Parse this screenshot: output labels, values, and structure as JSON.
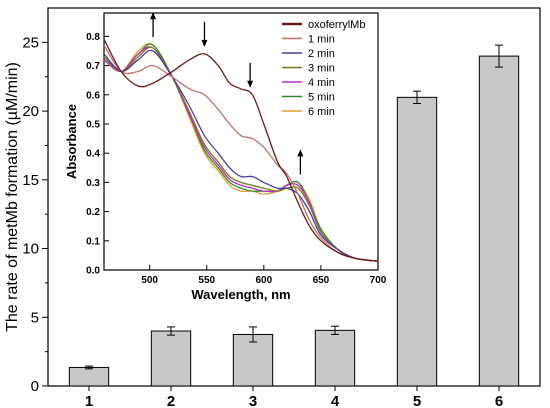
{
  "chart_data": [
    {
      "type": "bar",
      "categories": [
        "1",
        "2",
        "3",
        "4",
        "5",
        "6"
      ],
      "values": [
        1.35,
        4.0,
        3.75,
        4.05,
        21.0,
        24.0
      ],
      "errors": [
        0.1,
        0.3,
        0.55,
        0.3,
        0.45,
        0.8
      ],
      "ylabel": "The rate of metMb formation (µM/min)",
      "ylim": [
        0,
        27.5
      ],
      "yticks": [
        0,
        5,
        10,
        15,
        20,
        25
      ],
      "bar_color": "#c8c8c8",
      "grid": false
    },
    {
      "type": "line",
      "xlabel": "Wavelength, nm",
      "ylabel": "Absorbance",
      "xlim": [
        460,
        700
      ],
      "ylim": [
        0.0,
        0.88
      ],
      "xticks": [
        500,
        550,
        600,
        650,
        700
      ],
      "yticks": [
        0.0,
        0.1,
        0.2,
        0.3,
        0.4,
        0.5,
        0.6,
        0.7,
        0.8
      ],
      "x": [
        460,
        475,
        490,
        503,
        520,
        535,
        548,
        560,
        570,
        580,
        590,
        600,
        612,
        620,
        630,
        640,
        650,
        665,
        680,
        700
      ],
      "legend_position": "top-right",
      "arrows": [
        {
          "x": 503,
          "direction": "up"
        },
        {
          "x": 548,
          "direction": "down"
        },
        {
          "x": 588,
          "direction": "down"
        },
        {
          "x": 632,
          "direction": "up"
        }
      ],
      "series": [
        {
          "name": "oxoferrylMb",
          "color": "#6b1a1a",
          "values": [
            0.79,
            0.68,
            0.63,
            0.64,
            0.68,
            0.72,
            0.74,
            0.7,
            0.64,
            0.62,
            0.6,
            0.5,
            0.37,
            0.32,
            0.23,
            0.15,
            0.1,
            0.06,
            0.04,
            0.03
          ]
        },
        {
          "name": "1 min",
          "color": "#c0736a",
          "values": [
            0.77,
            0.68,
            0.68,
            0.7,
            0.66,
            0.62,
            0.6,
            0.55,
            0.5,
            0.46,
            0.45,
            0.42,
            0.36,
            0.33,
            0.26,
            0.17,
            0.11,
            0.06,
            0.04,
            0.03
          ]
        },
        {
          "name": "2 min",
          "color": "#4b3ba0",
          "values": [
            0.74,
            0.68,
            0.72,
            0.75,
            0.66,
            0.56,
            0.46,
            0.4,
            0.35,
            0.32,
            0.32,
            0.3,
            0.28,
            0.28,
            0.26,
            0.2,
            0.12,
            0.07,
            0.04,
            0.03
          ]
        },
        {
          "name": "3 min",
          "color": "#7a7a1e",
          "values": [
            0.73,
            0.68,
            0.73,
            0.76,
            0.66,
            0.54,
            0.43,
            0.37,
            0.32,
            0.3,
            0.29,
            0.28,
            0.27,
            0.28,
            0.28,
            0.22,
            0.13,
            0.07,
            0.04,
            0.03
          ]
        },
        {
          "name": "4 min",
          "color": "#c02bc0",
          "values": [
            0.72,
            0.68,
            0.74,
            0.76,
            0.66,
            0.53,
            0.42,
            0.36,
            0.31,
            0.29,
            0.28,
            0.27,
            0.27,
            0.29,
            0.29,
            0.23,
            0.13,
            0.07,
            0.04,
            0.03
          ]
        },
        {
          "name": "5 min",
          "color": "#2e8b2e",
          "values": [
            0.72,
            0.68,
            0.74,
            0.77,
            0.66,
            0.53,
            0.41,
            0.35,
            0.3,
            0.28,
            0.27,
            0.27,
            0.27,
            0.29,
            0.3,
            0.23,
            0.14,
            0.07,
            0.04,
            0.03
          ]
        },
        {
          "name": "6 min",
          "color": "#e0a030",
          "values": [
            0.72,
            0.68,
            0.75,
            0.77,
            0.66,
            0.52,
            0.4,
            0.34,
            0.29,
            0.27,
            0.27,
            0.26,
            0.27,
            0.29,
            0.3,
            0.24,
            0.14,
            0.07,
            0.04,
            0.03
          ]
        }
      ]
    }
  ]
}
